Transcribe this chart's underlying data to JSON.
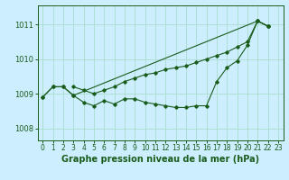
{
  "title": "Graphe pression niveau de la mer (hPa)",
  "background_color": "#cceeff",
  "grid_color": "#aaddcc",
  "line_color": "#1a5c1a",
  "x_ticks": [
    0,
    1,
    2,
    3,
    4,
    5,
    6,
    7,
    8,
    9,
    10,
    11,
    12,
    13,
    14,
    15,
    16,
    17,
    18,
    19,
    20,
    21,
    22,
    23
  ],
  "y_ticks": [
    1008,
    1009,
    1010,
    1011
  ],
  "ylim": [
    1007.65,
    1011.55
  ],
  "xlim": [
    -0.5,
    23.5
  ],
  "series1": [
    1008.9,
    1009.2,
    1009.2,
    1008.95,
    1008.75,
    1008.65,
    1008.8,
    1008.7,
    1008.85,
    1008.85,
    1008.75,
    1008.7,
    1008.65,
    1008.6,
    1008.6,
    1008.65,
    1008.65,
    1009.35,
    1009.75,
    1009.95,
    1010.4,
    1011.1,
    1010.95,
    null
  ],
  "series2": [
    null,
    null,
    null,
    1009.2,
    1009.1,
    1009.0,
    1009.1,
    1009.2,
    1009.35,
    1009.45,
    1009.55,
    1009.6,
    1009.7,
    1009.75,
    1009.8,
    1009.9,
    1010.0,
    1010.1,
    1010.2,
    1010.35,
    1010.5,
    1011.1,
    1010.95,
    null
  ],
  "series3": [
    1008.9,
    1009.2,
    1009.2,
    1008.95,
    null,
    null,
    null,
    null,
    null,
    null,
    null,
    null,
    null,
    null,
    null,
    null,
    null,
    null,
    null,
    null,
    null,
    1011.1,
    1010.95,
    null
  ],
  "title_fontsize": 7.0,
  "tick_fontsize": 5.5
}
